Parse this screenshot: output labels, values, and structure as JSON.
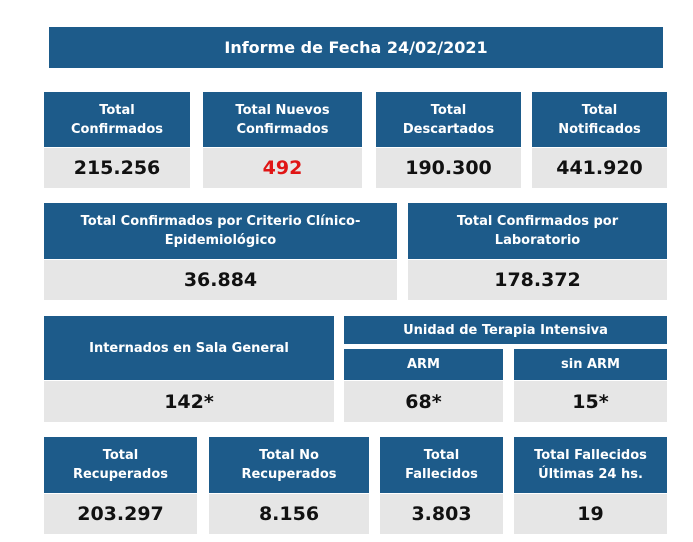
{
  "report": {
    "title": "Informe de Fecha 24/02/2021"
  },
  "row1": [
    {
      "label": "Total\nConfirmados",
      "value": "215.256"
    },
    {
      "label": "Total Nuevos\nConfirmados",
      "value": "492",
      "highlight_color": "#e01515"
    },
    {
      "label": "Total\nDescartados",
      "value": "190.300"
    },
    {
      "label": "Total\nNotificados",
      "value": "441.920"
    }
  ],
  "row2": [
    {
      "label": "Total Confirmados por Criterio Clínico-\nEpidemiológico",
      "value": "36.884"
    },
    {
      "label": "Total Confirmados por\nLaboratorio",
      "value": "178.372"
    }
  ],
  "row3": {
    "general": {
      "label": "Internados en Sala General",
      "value": "142*"
    },
    "uti_title": "Unidad de Terapia Intensiva",
    "arm": {
      "label": "ARM",
      "value": "68*"
    },
    "sin_arm": {
      "label": "sin ARM",
      "value": "15*"
    }
  },
  "row4": [
    {
      "label": "Total\nRecuperados",
      "value": "203.297"
    },
    {
      "label": "Total No\nRecuperados",
      "value": "8.156"
    },
    {
      "label": "Total\nFallecidos",
      "value": "3.803"
    },
    {
      "label": "Total Fallecidos\nÚltimas 24 hs.",
      "value": "19"
    }
  ],
  "colors": {
    "header_bg": "#1d5b8a",
    "value_bg": "#e6e6e6",
    "highlight": "#e01515"
  }
}
